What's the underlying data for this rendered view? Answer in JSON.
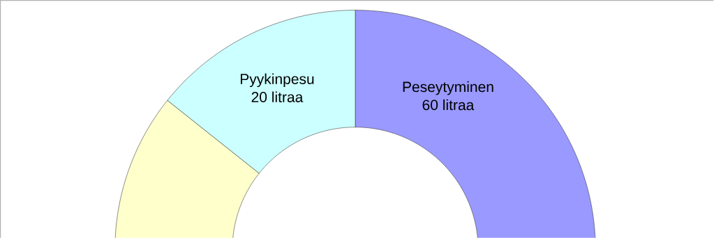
{
  "chart_data": {
    "type": "donut",
    "categories": [
      "Peseytyminen",
      null,
      "Pyykinpesu"
    ],
    "values": [
      60,
      60,
      20
    ],
    "value_labels": [
      "60 litraa",
      null,
      "20 litraa"
    ],
    "colors": [
      "#9999ff",
      "#ffffcc",
      "#ccffff"
    ]
  }
}
